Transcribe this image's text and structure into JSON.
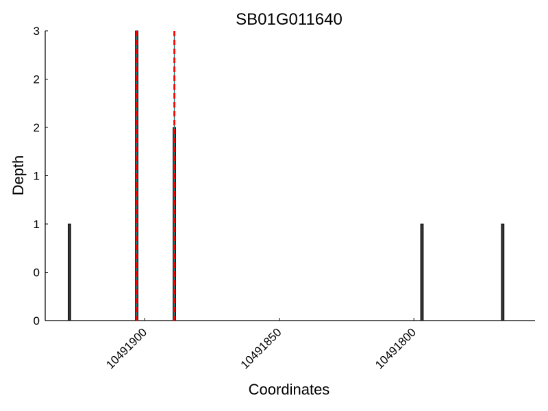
{
  "chart_data": {
    "type": "bar",
    "title": "SB01G011640",
    "xlabel": "Coordinates",
    "ylabel": "Depth",
    "x_reversed": true,
    "xlim": [
      10491937,
      10491755
    ],
    "ylim": [
      0,
      3
    ],
    "x_ticks": [
      10491900,
      10491850,
      10491800
    ],
    "x_tick_labels": [
      "10491900",
      "10491850",
      "10491800"
    ],
    "y_ticks": [
      0,
      0.5,
      1,
      1.5,
      2,
      2.5,
      3
    ],
    "y_tick_labels": [
      "0",
      "0",
      "1",
      "1",
      "2",
      "2",
      "3"
    ],
    "bars": [
      {
        "x": 10491928,
        "depth": 1
      },
      {
        "x": 10491903,
        "depth": 3
      },
      {
        "x": 10491889,
        "depth": 2
      },
      {
        "x": 10491797,
        "depth": 1
      },
      {
        "x": 10491767,
        "depth": 1
      }
    ],
    "markers": [
      {
        "x": 10491903,
        "style": "dashed",
        "color": "#ff0000"
      },
      {
        "x": 10491889,
        "style": "dashed",
        "color": "#ff0000"
      }
    ],
    "colors": {
      "bar_fill": "#333333",
      "bar_edge": "#000000",
      "bar_inner_stripe": "#2e7d7d",
      "marker": "#ff0000"
    },
    "grid": false,
    "legend": "none"
  }
}
